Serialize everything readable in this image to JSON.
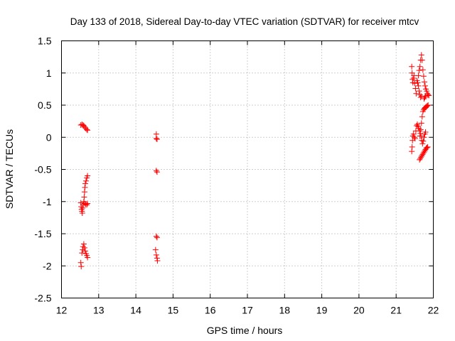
{
  "chart_data": {
    "type": "scatter",
    "title": "Day 133 of 2018, Sidereal Day-to-day VTEC variation (SDTVAR) for receiver mtcv",
    "xlabel": "GPS time / hours",
    "ylabel": "SDTVAR / TECUs",
    "xlim": [
      12,
      22
    ],
    "ylim": [
      -2.5,
      1.5
    ],
    "xticks": [
      "12",
      "13",
      "14",
      "15",
      "16",
      "17",
      "18",
      "19",
      "20",
      "21",
      "22"
    ],
    "yticks": [
      "1.5",
      "1",
      "0.5",
      "0",
      "-0.5",
      "-1",
      "-1.5",
      "-2",
      "-2.5"
    ],
    "grid": true,
    "marker": "plus",
    "color": "#ff0000",
    "series": [
      {
        "name": "SDTVAR",
        "points": [
          [
            12.52,
            0.19
          ],
          [
            12.55,
            0.2
          ],
          [
            12.58,
            0.19
          ],
          [
            12.6,
            0.18
          ],
          [
            12.62,
            0.16
          ],
          [
            12.65,
            0.14
          ],
          [
            12.68,
            0.12
          ],
          [
            12.7,
            0.11
          ],
          [
            12.52,
            -1.02
          ],
          [
            12.53,
            -1.08
          ],
          [
            12.54,
            -1.12
          ],
          [
            12.55,
            -1.15
          ],
          [
            12.56,
            -1.18
          ],
          [
            12.57,
            -1.1
          ],
          [
            12.58,
            -1.05
          ],
          [
            12.6,
            -1.0
          ],
          [
            12.61,
            -0.93
          ],
          [
            12.62,
            -0.85
          ],
          [
            12.63,
            -0.78
          ],
          [
            12.64,
            -0.72
          ],
          [
            12.66,
            -0.68
          ],
          [
            12.68,
            -0.63
          ],
          [
            12.7,
            -0.6
          ],
          [
            12.62,
            -1.03
          ],
          [
            12.65,
            -1.04
          ],
          [
            12.68,
            -1.05
          ],
          [
            12.7,
            -1.03
          ],
          [
            12.52,
            -1.95
          ],
          [
            12.53,
            -2.01
          ],
          [
            12.55,
            -1.8
          ],
          [
            12.57,
            -1.75
          ],
          [
            12.58,
            -1.7
          ],
          [
            12.6,
            -1.66
          ],
          [
            12.62,
            -1.72
          ],
          [
            12.64,
            -1.77
          ],
          [
            12.66,
            -1.81
          ],
          [
            12.68,
            -1.84
          ],
          [
            12.7,
            -1.87
          ],
          [
            14.55,
            0.05
          ],
          [
            14.55,
            -0.02
          ],
          [
            14.57,
            -0.03
          ],
          [
            14.55,
            -0.52
          ],
          [
            14.57,
            -0.54
          ],
          [
            14.55,
            -1.54
          ],
          [
            14.57,
            -1.56
          ],
          [
            14.53,
            -1.75
          ],
          [
            14.55,
            -1.83
          ],
          [
            14.57,
            -1.88
          ],
          [
            14.58,
            -1.92
          ],
          [
            21.42,
            1.1
          ],
          [
            21.43,
            1.0
          ],
          [
            21.44,
            0.9
          ],
          [
            21.45,
            0.85
          ],
          [
            21.47,
            0.92
          ],
          [
            21.48,
            0.96
          ],
          [
            21.5,
            0.84
          ],
          [
            21.52,
            0.76
          ],
          [
            21.54,
            0.68
          ],
          [
            21.56,
            0.88
          ],
          [
            21.58,
            0.85
          ],
          [
            21.6,
            0.8
          ],
          [
            21.62,
            0.72
          ],
          [
            21.64,
            0.66
          ],
          [
            21.66,
            0.62
          ],
          [
            21.68,
            0.64
          ],
          [
            21.6,
            0.96
          ],
          [
            21.62,
            1.04
          ],
          [
            21.64,
            1.1
          ],
          [
            21.66,
            1.2
          ],
          [
            21.68,
            1.28
          ],
          [
            21.7,
            1.2
          ],
          [
            21.72,
            1.05
          ],
          [
            21.74,
            0.95
          ],
          [
            21.76,
            0.86
          ],
          [
            21.78,
            0.8
          ],
          [
            21.8,
            0.75
          ],
          [
            21.82,
            0.72
          ],
          [
            21.84,
            0.68
          ],
          [
            21.86,
            0.66
          ],
          [
            21.88,
            0.65
          ],
          [
            21.75,
            0.6
          ],
          [
            21.77,
            0.62
          ],
          [
            21.79,
            0.64
          ],
          [
            21.42,
            -0.22
          ],
          [
            21.43,
            -0.15
          ],
          [
            21.44,
            -0.05
          ],
          [
            21.45,
            0.02
          ],
          [
            21.47,
            0.05
          ],
          [
            21.49,
            0.0
          ],
          [
            21.51,
            -0.02
          ],
          [
            21.53,
            0.1
          ],
          [
            21.55,
            0.18
          ],
          [
            21.57,
            0.2
          ],
          [
            21.59,
            0.17
          ],
          [
            21.61,
            0.14
          ],
          [
            21.63,
            0.1
          ],
          [
            21.65,
            0.06
          ],
          [
            21.67,
            0.02
          ],
          [
            21.69,
            -0.05
          ],
          [
            21.71,
            -0.1
          ],
          [
            21.73,
            -0.06
          ],
          [
            21.75,
            0.0
          ],
          [
            21.77,
            0.05
          ],
          [
            21.79,
            0.08
          ],
          [
            21.63,
            -0.35
          ],
          [
            21.65,
            -0.33
          ],
          [
            21.67,
            -0.31
          ],
          [
            21.69,
            -0.29
          ],
          [
            21.71,
            -0.27
          ],
          [
            21.73,
            -0.25
          ],
          [
            21.75,
            -0.23
          ],
          [
            21.77,
            -0.21
          ],
          [
            21.79,
            -0.19
          ],
          [
            21.81,
            -0.17
          ],
          [
            21.83,
            -0.16
          ],
          [
            21.85,
            -0.15
          ],
          [
            21.64,
            0.02
          ],
          [
            21.66,
            0.12
          ],
          [
            21.68,
            0.22
          ],
          [
            21.7,
            0.32
          ],
          [
            21.72,
            0.4
          ],
          [
            21.74,
            0.43
          ],
          [
            21.76,
            0.45
          ],
          [
            21.78,
            0.46
          ],
          [
            21.8,
            0.47
          ],
          [
            21.82,
            0.48
          ],
          [
            21.84,
            0.49
          ],
          [
            21.86,
            0.5
          ]
        ]
      }
    ]
  }
}
